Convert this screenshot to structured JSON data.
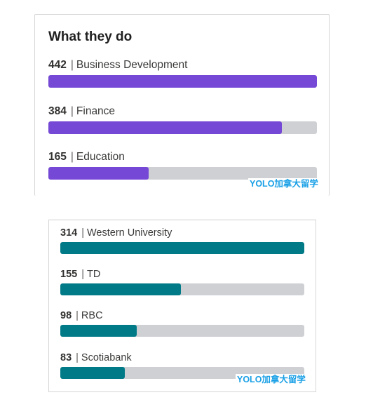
{
  "colors": {
    "role_bar": "#7548d6",
    "employer_bar": "#007a87",
    "track": "#ced0d3",
    "watermark": "#1aa0e6"
  },
  "roles_panel": {
    "title": "What they do",
    "items": [
      {
        "count": "442",
        "label": "Business Development",
        "fraction": 1.0
      },
      {
        "count": "384",
        "label": "Finance",
        "fraction": 0.869
      },
      {
        "count": "165",
        "label": "Education",
        "fraction": 0.373
      }
    ],
    "watermark": "YOLO加拿大留学"
  },
  "employers_panel": {
    "items": [
      {
        "count": "314",
        "label": "Western University",
        "fraction": 1.0
      },
      {
        "count": "155",
        "label": "TD",
        "fraction": 0.494
      },
      {
        "count": "98",
        "label": "RBC",
        "fraction": 0.312
      },
      {
        "count": "83",
        "label": "Scotiabank",
        "fraction": 0.264
      }
    ],
    "watermark": "YOLO加拿大留学"
  }
}
